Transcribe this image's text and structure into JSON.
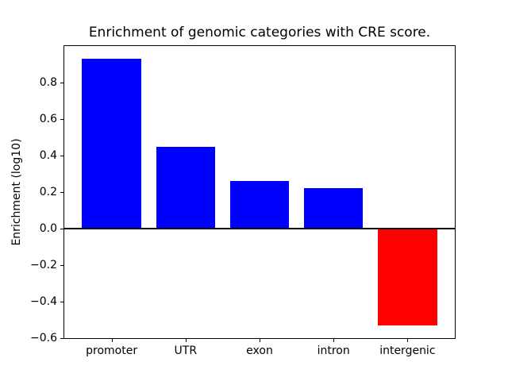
{
  "figure": {
    "background_color": "#ffffff",
    "axes_edge_color": "#000000"
  },
  "chart_data": {
    "type": "bar",
    "title": "Enrichment of genomic categories with CRE score.",
    "xlabel": "",
    "ylabel": "Enrichment (log10)",
    "categories": [
      "promoter",
      "UTR",
      "exon",
      "intron",
      "intergenic"
    ],
    "values": [
      0.93,
      0.45,
      0.26,
      0.22,
      -0.53
    ],
    "bar_colors": [
      "#0000ff",
      "#0000ff",
      "#0000ff",
      "#0000ff",
      "#ff0000"
    ],
    "positive_color": "#0000ff",
    "negative_color": "#ff0000",
    "ylim": [
      -0.6,
      1.0
    ],
    "xlim": [
      -0.64,
      4.64
    ],
    "bar_width": 0.8,
    "yticks": [
      0.8,
      0.6,
      0.4,
      0.2,
      0.0,
      -0.2,
      -0.4,
      -0.6
    ],
    "ytick_labels": [
      "0.8",
      "0.6",
      "0.4",
      "0.2",
      "0.0",
      "−0.2",
      "−0.4",
      "−0.6"
    ],
    "zero_line": true,
    "zero_line_color": "#000000",
    "grid": false,
    "legend": false
  }
}
